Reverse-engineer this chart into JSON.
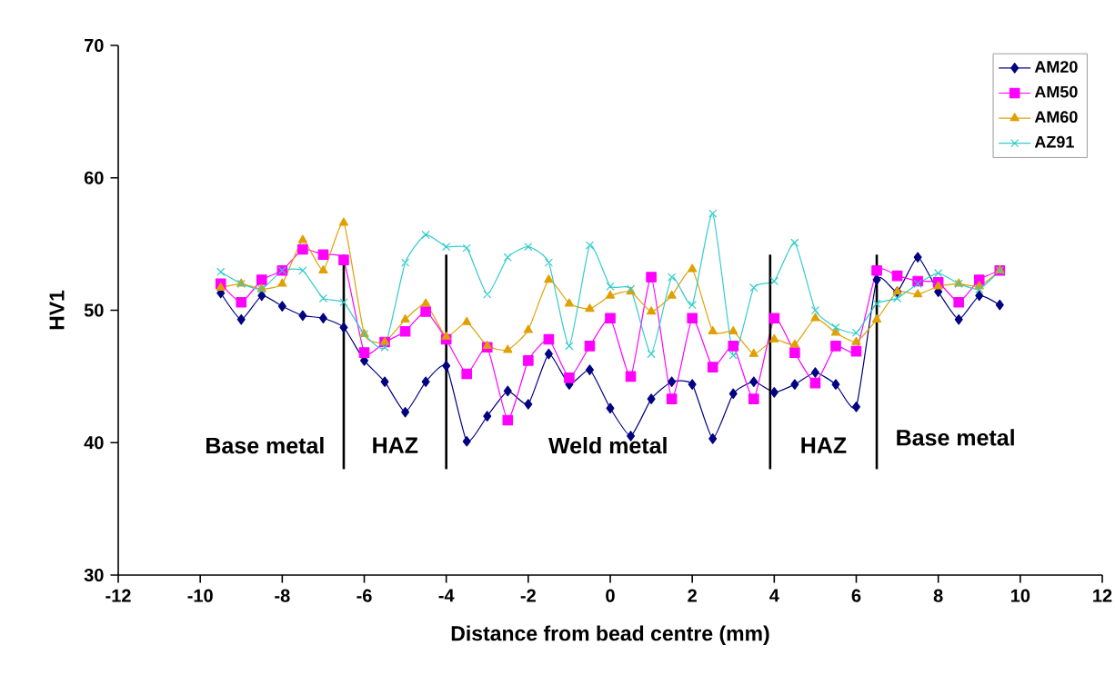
{
  "chart_data": {
    "type": "line",
    "xlabel": "Distance from bead centre (mm)",
    "ylabel": "HV1",
    "x": [
      -9.5,
      -9,
      -8.5,
      -8,
      -7.5,
      -7,
      -6.5,
      -6,
      -5.5,
      -5,
      -4.5,
      -4,
      -3.5,
      -3,
      -2.5,
      -2,
      -1.5,
      -1,
      -0.5,
      0,
      0.5,
      1,
      1.5,
      2,
      2.5,
      3,
      3.5,
      4,
      4.5,
      5,
      5.5,
      6,
      6.5,
      7,
      7.5,
      8,
      8.5,
      9,
      9.5
    ],
    "series": [
      {
        "name": "AM20",
        "color": "#000080",
        "marker": "diamond",
        "values": [
          51.3,
          49.3,
          51.1,
          50.3,
          49.6,
          49.4,
          48.7,
          46.2,
          44.6,
          42.3,
          44.6,
          45.8,
          40.1,
          42.0,
          43.9,
          42.9,
          46.7,
          44.4,
          45.5,
          42.6,
          40.5,
          43.3,
          44.6,
          44.4,
          40.3,
          43.7,
          44.6,
          43.8,
          44.4,
          45.3,
          44.4,
          42.7,
          52.3,
          51.4,
          54.0,
          51.4,
          49.3,
          51.1,
          50.4
        ]
      },
      {
        "name": "AM50",
        "color": "#ff00ff",
        "marker": "square",
        "values": [
          52.0,
          50.6,
          52.3,
          53.0,
          54.6,
          54.2,
          53.8,
          46.8,
          47.6,
          48.4,
          49.9,
          47.8,
          45.2,
          47.2,
          41.7,
          46.2,
          47.8,
          44.9,
          47.3,
          49.4,
          45.0,
          52.5,
          43.3,
          49.4,
          45.7,
          47.3,
          43.3,
          49.4,
          46.8,
          44.5,
          47.3,
          46.9,
          53.0,
          52.6,
          52.2,
          52.1,
          50.6,
          52.3,
          53.0
        ]
      },
      {
        "name": "AM60",
        "color": "#e0a000",
        "marker": "triangle",
        "values": [
          51.7,
          52.0,
          51.6,
          52.0,
          55.3,
          53.0,
          56.6,
          48.2,
          47.6,
          49.3,
          50.5,
          48.0,
          49.1,
          47.3,
          47.0,
          48.5,
          52.3,
          50.5,
          50.1,
          51.1,
          51.4,
          49.9,
          51.1,
          53.1,
          48.4,
          48.4,
          46.7,
          47.8,
          47.4,
          49.4,
          48.3,
          47.6,
          49.3,
          51.4,
          51.2,
          51.8,
          52.0,
          51.8,
          53.0
        ]
      },
      {
        "name": "AZ91",
        "color": "#33cccc",
        "marker": "cross",
        "values": [
          52.9,
          52.0,
          51.6,
          53.0,
          53.0,
          50.9,
          50.6,
          48.2,
          47.2,
          53.6,
          55.7,
          54.8,
          54.7,
          51.2,
          54.0,
          54.8,
          53.6,
          47.3,
          54.9,
          51.8,
          51.6,
          46.7,
          52.5,
          50.4,
          57.3,
          46.6,
          51.7,
          52.2,
          55.1,
          50.0,
          48.7,
          48.3,
          50.5,
          50.9,
          52.0,
          52.8,
          52.0,
          51.6,
          53.0
        ]
      }
    ],
    "xlim": [
      -12,
      12
    ],
    "xticks": [
      -12,
      -10,
      -8,
      -6,
      -4,
      -2,
      0,
      2,
      4,
      6,
      8,
      10,
      12
    ],
    "ylim": [
      30,
      70
    ],
    "yticks": [
      30,
      40,
      50,
      60,
      70
    ],
    "ref_lines": [
      {
        "axis": "x",
        "value": -6.5,
        "color": "#000000"
      },
      {
        "axis": "x",
        "value": -4,
        "color": "#000000"
      },
      {
        "axis": "x",
        "value": 3.9,
        "color": "#000000"
      },
      {
        "axis": "x",
        "value": 6.5,
        "color": "#000000"
      }
    ],
    "annotations": [
      "Base metal",
      "HAZ",
      "Weld metal",
      "HAZ",
      "Base metal"
    ],
    "legend": "top right",
    "grid": false,
    "line_style": "solid"
  }
}
